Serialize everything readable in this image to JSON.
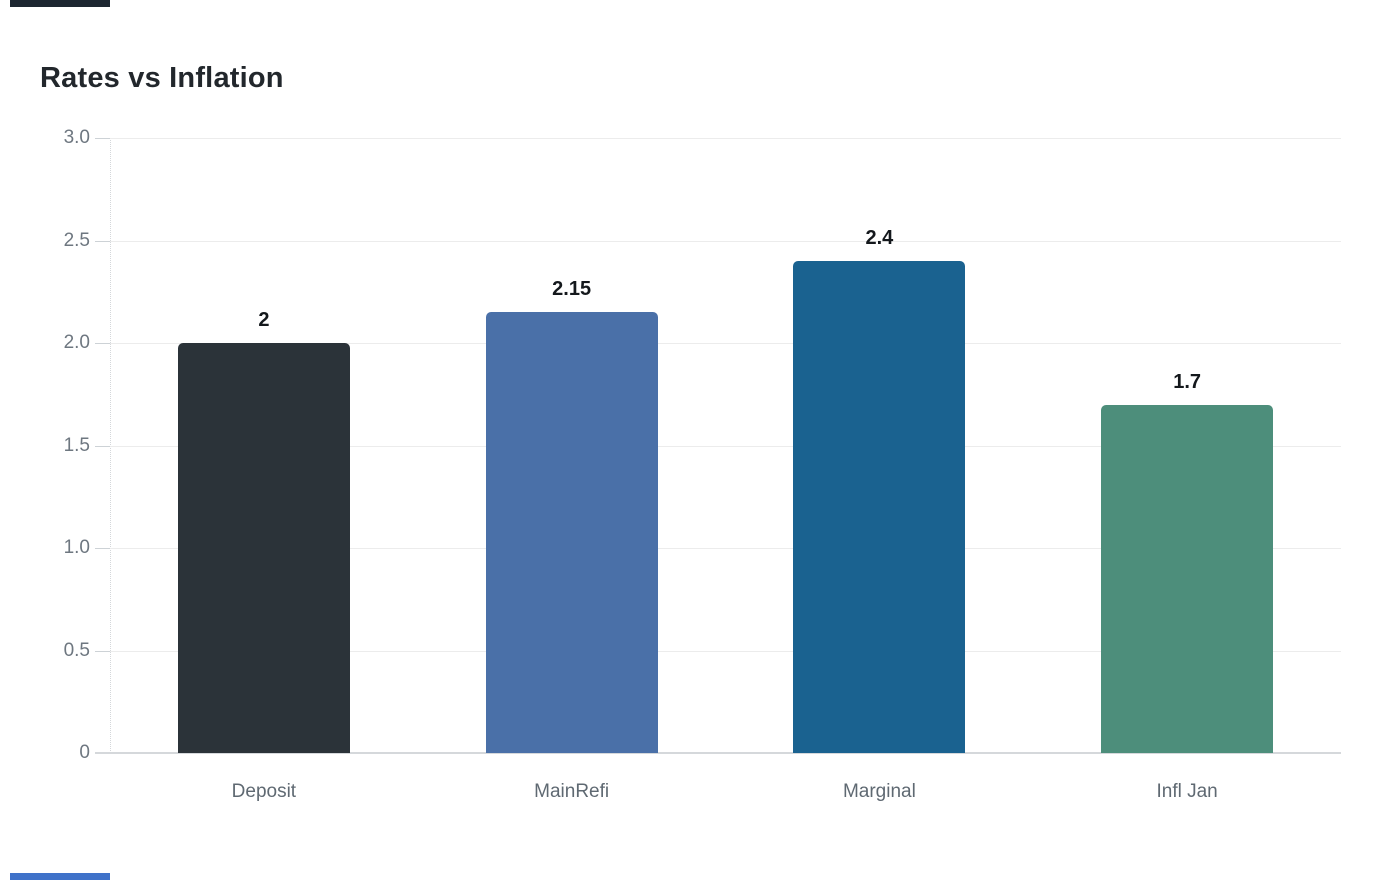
{
  "page": {
    "background": "#ffffff",
    "top_edge_strip_color": "#1c2630",
    "bottom_edge_strip_color": "#3f72c9"
  },
  "chart_data": {
    "type": "bar",
    "title": "Rates vs Inflation",
    "categories": [
      "Deposit",
      "MainRefi",
      "Marginal",
      "Infl Jan"
    ],
    "values": [
      2,
      2.15,
      2.4,
      1.7
    ],
    "value_labels": [
      "2",
      "2.15",
      "2.4",
      "1.7"
    ],
    "bar_colors": [
      "#2b3339",
      "#4a70a8",
      "#1a6290",
      "#4d8e7b"
    ],
    "xlabel": "",
    "ylabel": "",
    "ylim": [
      0,
      3.0
    ],
    "yticks": [
      0,
      0.5,
      1.0,
      1.5,
      2.0,
      2.5,
      3.0
    ],
    "ytick_labels": [
      "0",
      "0.5",
      "1.0",
      "1.5",
      "2.0",
      "2.5",
      "3.0"
    ],
    "grid": "horizontal-only",
    "legend_position": "none",
    "colors": {
      "title": "#22272c",
      "gridline": "#ececec",
      "baseline": "#d5d8db",
      "axis_dotted_line": "#d4d7da",
      "y_tick_label": "#6e7780",
      "x_tick_label": "#5f6972",
      "value_label": "#14181c"
    }
  }
}
